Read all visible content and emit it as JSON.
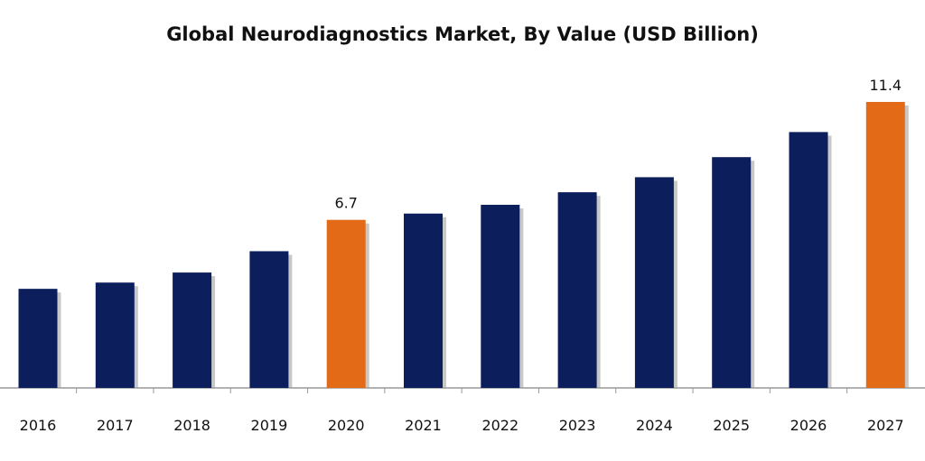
{
  "chart_data": {
    "type": "bar",
    "title": "Global Neurodiagnostics Market, By Value (USD Billion)",
    "xlabel": "",
    "ylabel": "",
    "categories": [
      "2016",
      "2017",
      "2018",
      "2019",
      "2020",
      "2021",
      "2022",
      "2023",
      "2024",
      "2025",
      "2026",
      "2027"
    ],
    "values": [
      3.95,
      4.2,
      4.6,
      5.45,
      6.7,
      6.95,
      7.3,
      7.8,
      8.4,
      9.2,
      10.2,
      11.4
    ],
    "data_labels": {
      "2020": "6.7",
      "2027": "11.4"
    },
    "highlight_categories": [
      "2020",
      "2027"
    ],
    "ylim": [
      0,
      12
    ],
    "grid": false,
    "legend": "none",
    "colors": {
      "default": "#0c1f5c",
      "highlight": "#e36b17",
      "axis": "#999999"
    }
  }
}
